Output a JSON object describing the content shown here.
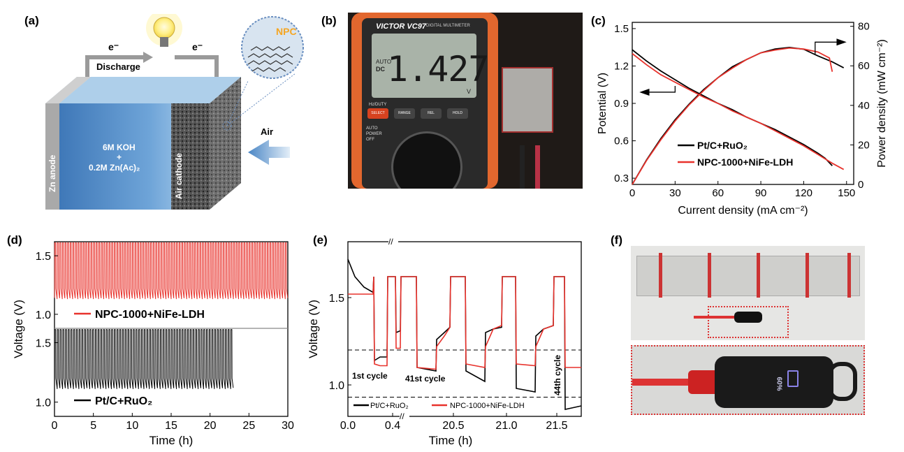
{
  "panels": {
    "a": {
      "label": "(a)",
      "electron_left": "e⁻",
      "electron_right": "e⁻",
      "discharge": "Discharge",
      "electrolyte_line1": "6M KOH",
      "electrolyte_plus": "+",
      "electrolyte_line2": "0.2M Zn(Ac)₂",
      "anode": "Zn anode",
      "cathode": "Air cathode",
      "air": "Air",
      "npc": "NPC"
    },
    "b": {
      "label": "(b)",
      "brand": "VICTOR VC97",
      "meter_sub": "DIGITAL MULTIMETER",
      "reading": "1.427",
      "auto": "AUTO",
      "dc": "DC",
      "unit": "V",
      "hz_duty": "Hz/DUTY",
      "buttons": [
        "SELECT",
        "RANGE",
        "REL",
        "HOLD"
      ],
      "auto_power_off": "AUTO POWER OFF"
    },
    "f": {
      "label": "(f)",
      "percent": "60%"
    }
  },
  "chart_data": [
    {
      "id": "c",
      "label": "(c)",
      "type": "line",
      "xlabel": "Current density (mA cm⁻²)",
      "ylabel": "Potential (V)",
      "y2label": "Power density (mW cm⁻²)",
      "xlim": [
        0,
        155
      ],
      "ylim": [
        0.25,
        1.55
      ],
      "y2lim": [
        0,
        82
      ],
      "xticks": [
        "0",
        "30",
        "60",
        "90",
        "120",
        "150"
      ],
      "yticks": [
        "0.3",
        "0.6",
        "0.9",
        "1.2",
        "1.5"
      ],
      "y2ticks": [
        "0",
        "20",
        "40",
        "60",
        "80"
      ],
      "series": [
        {
          "name": "Pt/C+RuO₂",
          "color": "#000000",
          "polarization": [
            [
              0,
              1.33
            ],
            [
              10,
              1.24
            ],
            [
              20,
              1.16
            ],
            [
              30,
              1.09
            ],
            [
              40,
              1.02
            ],
            [
              50,
              0.96
            ],
            [
              60,
              0.9
            ],
            [
              70,
              0.85
            ],
            [
              80,
              0.79
            ],
            [
              90,
              0.74
            ],
            [
              100,
              0.69
            ],
            [
              110,
              0.63
            ],
            [
              120,
              0.57
            ],
            [
              130,
              0.5
            ],
            [
              135,
              0.46
            ],
            [
              140,
              0.4
            ]
          ],
          "power": [
            [
              0,
              0
            ],
            [
              10,
              12.4
            ],
            [
              20,
              23.2
            ],
            [
              30,
              32.7
            ],
            [
              40,
              40.8
            ],
            [
              50,
              48
            ],
            [
              60,
              54
            ],
            [
              70,
              59.5
            ],
            [
              80,
              63.2
            ],
            [
              90,
              66.6
            ],
            [
              100,
              68.5
            ],
            [
              110,
              69.3
            ],
            [
              120,
              68.4
            ],
            [
              130,
              65
            ],
            [
              140,
              62
            ],
            [
              148,
              59
            ]
          ]
        },
        {
          "name": "NPC-1000+NiFe-LDH",
          "color": "#e8322c",
          "polarization": [
            [
              0,
              1.3
            ],
            [
              10,
              1.21
            ],
            [
              20,
              1.13
            ],
            [
              30,
              1.07
            ],
            [
              40,
              1.01
            ],
            [
              50,
              0.95
            ],
            [
              60,
              0.9
            ],
            [
              70,
              0.84
            ],
            [
              80,
              0.79
            ],
            [
              90,
              0.74
            ],
            [
              100,
              0.68
            ],
            [
              110,
              0.62
            ],
            [
              120,
              0.56
            ],
            [
              130,
              0.49
            ],
            [
              140,
              0.42
            ],
            [
              148,
              0.37
            ]
          ],
          "power": [
            [
              0,
              0
            ],
            [
              10,
              12.1
            ],
            [
              20,
              22.6
            ],
            [
              30,
              32.1
            ],
            [
              40,
              40.4
            ],
            [
              50,
              47.5
            ],
            [
              60,
              54
            ],
            [
              70,
              58.8
            ],
            [
              80,
              63.2
            ],
            [
              90,
              66.6
            ],
            [
              100,
              68
            ],
            [
              110,
              69
            ],
            [
              120,
              68.5
            ],
            [
              130,
              67
            ],
            [
              138,
              64
            ],
            [
              140,
              57
            ]
          ]
        }
      ]
    },
    {
      "id": "d",
      "label": "(d)",
      "type": "line",
      "xlabel": "Time (h)",
      "ylabel": "Voltage (V)",
      "xlim": [
        0,
        30
      ],
      "xticks": [
        "0",
        "5",
        "10",
        "15",
        "20",
        "25",
        "30"
      ],
      "top_yticks": [
        "1.0",
        "1.5"
      ],
      "bottom_yticks": [
        "1.0",
        "1.5"
      ],
      "series": [
        {
          "name": "NPC-1000+NiFe-LDH",
          "color": "#e8322c",
          "end_time": 30,
          "charge_v": 1.61,
          "discharge_start_v": 1.22,
          "discharge_end_v": 1.14,
          "cycles": 90
        },
        {
          "name": "Pt/C+RuO₂",
          "color": "#000000",
          "end_time": 23,
          "charge_v": 1.61,
          "discharge_start_v": 1.2,
          "discharge_end_v": 1.12,
          "cycles": 66
        }
      ]
    },
    {
      "id": "e",
      "label": "(e)",
      "type": "line",
      "xlabel": "Time (h)",
      "ylabel": "Voltage (V)",
      "xticks": [
        "0.0",
        "0.4",
        "20.5",
        "21.0",
        "21.5"
      ],
      "yticks": [
        "1.0",
        "1.5"
      ],
      "ylim": [
        0.82,
        1.82
      ],
      "dashed_levels": [
        1.2,
        0.93
      ],
      "annotations": [
        "1st cycle",
        "41st cycle",
        "44th cycle"
      ],
      "series": [
        {
          "name": "Pt/C+RuO₂",
          "color": "#000000"
        },
        {
          "name": "NPC-1000+NiFe-LDH",
          "color": "#e8322c"
        }
      ]
    }
  ]
}
